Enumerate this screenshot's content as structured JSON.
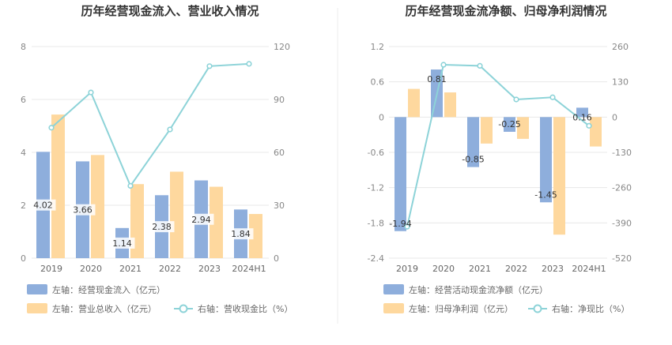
{
  "colors": {
    "bar_primary": "#8eaedc",
    "bar_secondary": "#fed89e",
    "line": "#8dd3d8",
    "grid": "#e8e8e8",
    "divider": "#eeeeee"
  },
  "chart_data": [
    {
      "type": "bar",
      "title": "历年经营现金流入、营业收入情况",
      "categories": [
        "2019",
        "2020",
        "2021",
        "2022",
        "2023",
        "2024H1"
      ],
      "left_axis": {
        "ylim": [
          0,
          8
        ],
        "ticks": [
          "0",
          "2",
          "4",
          "6",
          "8"
        ]
      },
      "right_axis": {
        "ylim": [
          0,
          120
        ],
        "ticks": [
          "0",
          "30",
          "60",
          "90",
          "120"
        ]
      },
      "series": [
        {
          "name": "左轴：经营现金流入（亿元）",
          "kind": "bar",
          "axis": "left",
          "values": [
            4.02,
            3.66,
            1.14,
            2.38,
            2.94,
            1.84
          ],
          "labels": [
            "4.02",
            "3.66",
            "1.14",
            "2.38",
            "2.94",
            "1.84"
          ]
        },
        {
          "name": "左轴：营业总收入（亿元）",
          "kind": "bar",
          "axis": "left",
          "values": [
            5.43,
            3.9,
            2.8,
            3.27,
            2.7,
            1.67
          ]
        },
        {
          "name": "右轴：营收现金比（%）",
          "kind": "line",
          "axis": "right",
          "values": [
            74,
            94,
            41,
            73,
            108.9,
            110.2
          ]
        }
      ]
    },
    {
      "type": "bar",
      "title": "历年经营现金流净额、归母净利润情况",
      "categories": [
        "2019",
        "2020",
        "2021",
        "2022",
        "2023",
        "2024H1"
      ],
      "left_axis": {
        "ylim": [
          -2.4,
          1.2
        ],
        "ticks": [
          "-2.4",
          "-1.8",
          "-1.2",
          "-0.6",
          "0",
          "0.6",
          "1.2"
        ]
      },
      "right_axis": {
        "ylim": [
          -520,
          260
        ],
        "ticks": [
          "-520",
          "-390",
          "-260",
          "-130",
          "0",
          "130",
          "260"
        ]
      },
      "series": [
        {
          "name": "左轴：经营活动现金流净额（亿元）",
          "kind": "bar",
          "axis": "left",
          "values": [
            -1.94,
            0.81,
            -0.85,
            -0.25,
            -1.45,
            0.16
          ],
          "labels": [
            "-1.94",
            "0.81",
            "-0.85",
            "-0.25",
            "-1.45",
            "0.16"
          ]
        },
        {
          "name": "左轴：归母净利润（亿元）",
          "kind": "bar",
          "axis": "left",
          "values": [
            0.48,
            0.42,
            -0.45,
            -0.37,
            -2.0,
            -0.5
          ]
        },
        {
          "name": "右轴：净现比（%）",
          "kind": "line",
          "axis": "right",
          "values": [
            -404,
            193,
            189,
            65,
            73,
            -32
          ]
        }
      ]
    }
  ]
}
